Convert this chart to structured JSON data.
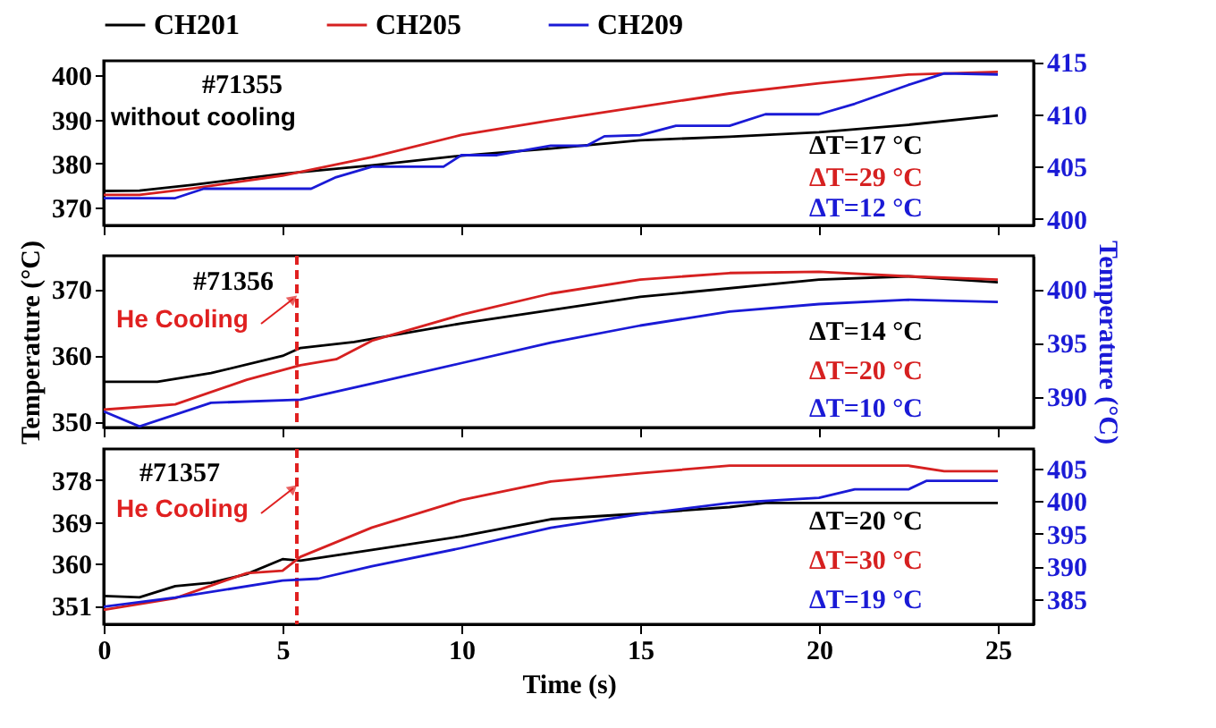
{
  "chart_data": [
    {
      "type": "line",
      "legend": "top",
      "tick_labels": "y",
      "xlim": [
        0,
        26
      ],
      "xticks": [
        0,
        5,
        10,
        15,
        20,
        25
      ],
      "ylim": [
        366,
        403.3
      ],
      "yticks": [
        370,
        380,
        390,
        400
      ],
      "y2lim": [
        399.4,
        415.1
      ],
      "y2ticks": [
        400,
        405,
        410,
        415
      ],
      "annotations": [
        "#71355",
        "without cooling",
        "ΔT=17 °C",
        "ΔT=29 °C",
        "ΔT=12 °C"
      ],
      "series": [
        {
          "name": "CH201",
          "color": "#000000",
          "x": [
            0,
            1,
            2.5,
            5,
            7.5,
            10,
            12.5,
            15,
            17.5,
            20,
            22.5,
            25
          ],
          "values": [
            373.8,
            373.9,
            375.2,
            377.7,
            379.6,
            381.8,
            383.4,
            385.3,
            386.1,
            387.1,
            388.8,
            390.9
          ]
        },
        {
          "name": "CH205",
          "color": "#d62020",
          "x": [
            0,
            1,
            2.5,
            5,
            7.5,
            10,
            12.5,
            15,
            17.5,
            20,
            22.5,
            25
          ],
          "values": [
            372.9,
            372.9,
            374.4,
            377.3,
            381.5,
            386.5,
            389.8,
            392.9,
            395.9,
            398.2,
            400.2,
            400.8
          ]
        },
        {
          "name": "CH209",
          "color": "#1a1ad6",
          "axis": "y2",
          "x": [
            0,
            2,
            2.8,
            5.8,
            6.5,
            7.5,
            9.5,
            10,
            11,
            12.5,
            13.5,
            14,
            15,
            16,
            17.5,
            18.5,
            20,
            21,
            22.5,
            23.5,
            25
          ],
          "values": [
            402.0,
            402.0,
            402.9,
            402.9,
            404.0,
            405.0,
            405.0,
            406.1,
            406.1,
            407.0,
            407.0,
            407.9,
            408.0,
            408.9,
            408.9,
            410.0,
            410.0,
            411.0,
            412.8,
            413.9,
            413.8
          ]
        }
      ]
    },
    {
      "type": "line",
      "legend": false,
      "tick_labels": "y",
      "xlim": [
        0,
        26
      ],
      "xticks": [
        0,
        5,
        10,
        15,
        20,
        25
      ],
      "ylim": [
        349.1,
        375
      ],
      "yticks": [
        350,
        360,
        370
      ],
      "y2lim": [
        387.1,
        403.1
      ],
      "y2ticks": [
        390,
        395,
        400
      ],
      "ylabel": "Temperature (°C)",
      "y2label": "Temperature (°C)",
      "ref_lines": [
        {
          "axis": "x",
          "value": 5.4,
          "label": "He Cooling",
          "color": "#e02020",
          "line_style": "dashed"
        }
      ],
      "annotations": [
        "#71356",
        "ΔT=14 °C",
        "ΔT=20 °C",
        "ΔT=10 °C"
      ],
      "series": [
        {
          "color": "#000000",
          "x": [
            0,
            1.5,
            3,
            5,
            5.5,
            6.5,
            7,
            10,
            15,
            20,
            22.5,
            25
          ],
          "values": [
            356.0,
            356.0,
            357.3,
            359.9,
            361.1,
            361.7,
            362.0,
            364.8,
            368.8,
            371.4,
            371.9,
            371.0
          ]
        },
        {
          "color": "#d62020",
          "x": [
            0,
            2,
            4,
            5.5,
            6.5,
            7.5,
            10,
            12.5,
            15,
            17.5,
            20,
            22.5,
            25
          ],
          "values": [
            351.8,
            352.6,
            356.3,
            358.5,
            359.4,
            362.2,
            366.1,
            369.3,
            371.4,
            372.4,
            372.6,
            371.9,
            371.4
          ]
        },
        {
          "color": "#1a1ad6",
          "axis": "y2",
          "x": [
            0,
            1,
            3,
            5.5,
            7.5,
            10,
            12.5,
            15,
            17.5,
            20,
            22.5,
            25
          ],
          "values": [
            388.6,
            387.2,
            389.4,
            389.7,
            391.2,
            393.1,
            395.0,
            396.6,
            397.9,
            398.6,
            399.0,
            398.8
          ]
        }
      ]
    },
    {
      "type": "line",
      "legend": false,
      "xlabel": "Time (s)",
      "xlim": [
        0,
        26
      ],
      "xticks": [
        0,
        5,
        10,
        15,
        20,
        25
      ],
      "ylim": [
        347,
        384.7
      ],
      "yticks": [
        351,
        360,
        369,
        378
      ],
      "y2lim": [
        381.1,
        408
      ],
      "y2ticks": [
        385,
        390,
        395,
        400,
        405
      ],
      "ref_lines": [
        {
          "axis": "x",
          "value": 5.4,
          "label": "He Cooling",
          "color": "#e02020",
          "line_style": "dashed"
        }
      ],
      "annotations": [
        "#71357",
        "ΔT=20 °C",
        "ΔT=30 °C",
        "ΔT=19 °C"
      ],
      "series": [
        {
          "color": "#000000",
          "x": [
            0,
            1,
            2,
            3,
            4,
            5,
            5.5,
            7.5,
            10,
            12.5,
            15,
            17.5,
            18.5,
            25
          ],
          "values": [
            353.1,
            352.8,
            355.2,
            355.9,
            357.8,
            361.0,
            360.7,
            363.0,
            365.9,
            369.6,
            370.8,
            372.2,
            373.1,
            373.1
          ]
        },
        {
          "color": "#d62020",
          "x": [
            0,
            2,
            4,
            5,
            5.5,
            7.5,
            10,
            12.5,
            15,
            17.5,
            22.5,
            23.5,
            25
          ],
          "values": [
            350.1,
            352.6,
            358.0,
            358.5,
            361.5,
            367.8,
            373.7,
            377.7,
            379.5,
            381.1,
            381.1,
            379.9,
            379.9
          ]
        },
        {
          "color": "#1a1ad6",
          "axis": "y2",
          "x": [
            0,
            2,
            5,
            6,
            7.5,
            10,
            12.5,
            15,
            17.5,
            20,
            21,
            22.5,
            23,
            25
          ],
          "values": [
            383.8,
            385.2,
            387.8,
            388.1,
            390.0,
            392.8,
            395.9,
            398.0,
            399.7,
            400.5,
            401.8,
            401.8,
            403.1,
            403.1
          ]
        }
      ]
    }
  ]
}
